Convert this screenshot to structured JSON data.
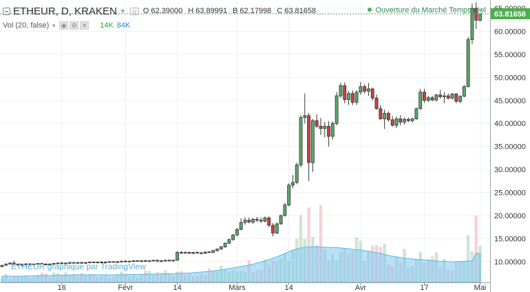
{
  "header": {
    "symbol": "ETHEUR, D, KRAKEN",
    "ohlc": [
      {
        "key": "O",
        "value": "62.39000"
      },
      {
        "key": "H",
        "value": "63.89991"
      },
      {
        "key": "B",
        "value": "62.17998"
      },
      {
        "key": "C",
        "value": "63.81658"
      }
    ],
    "volume_label": "Vol (20, false)",
    "volume_value": "14K",
    "volume_ma_value": "84K"
  },
  "status": {
    "text": "Ouverture du Marché  Temps réel"
  },
  "watermark": "ETHEUR graphique par TradingView",
  "price_badge": "63.81658",
  "chart_data": {
    "type": "candlestick",
    "title": "ETHEUR, D, KRAKEN",
    "x_labels": [
      "16",
      "Févr",
      "14",
      "Mars",
      "14",
      "Avr",
      "17",
      "Mai"
    ],
    "x_dates": [
      "2017-01-16",
      "2017-02-01",
      "2017-02-14",
      "2017-03-01",
      "2017-03-14",
      "2017-04-01",
      "2017-04-17",
      "2017-05-01"
    ],
    "x_range": [
      "2017-01-01",
      "2017-05-04"
    ],
    "y_ticks": [
      "10.00000",
      "15.00000",
      "20.00000",
      "25.00000",
      "30.00000",
      "35.00000",
      "40.00000",
      "45.00000",
      "50.00000",
      "55.00000",
      "60.00000",
      "65.00000"
    ],
    "y_range": [
      5.5,
      66.5
    ],
    "last_price": 63.81658,
    "grid": true,
    "candles": [
      [
        "2017-01-01",
        8.9,
        9.3,
        8.8,
        9.2
      ],
      [
        "2017-01-02",
        9.2,
        9.6,
        9.1,
        9.5
      ],
      [
        "2017-01-03",
        9.5,
        9.8,
        9.3,
        9.7
      ],
      [
        "2017-01-04",
        9.7,
        10.2,
        9.5,
        9.4
      ],
      [
        "2017-01-05",
        9.4,
        9.6,
        9.1,
        9.3
      ],
      [
        "2017-01-06",
        9.3,
        9.5,
        9.0,
        9.4
      ],
      [
        "2017-01-07",
        9.4,
        9.7,
        9.2,
        9.5
      ],
      [
        "2017-01-08",
        9.5,
        9.7,
        9.3,
        9.4
      ],
      [
        "2017-01-09",
        9.4,
        9.6,
        9.2,
        9.5
      ],
      [
        "2017-01-10",
        9.5,
        9.7,
        9.3,
        9.6
      ],
      [
        "2017-01-11",
        9.6,
        9.8,
        9.4,
        9.5
      ],
      [
        "2017-01-12",
        9.5,
        9.6,
        9.2,
        9.3
      ],
      [
        "2017-01-13",
        9.3,
        9.6,
        9.2,
        9.5
      ],
      [
        "2017-01-14",
        9.5,
        9.7,
        9.3,
        9.6
      ],
      [
        "2017-01-15",
        9.6,
        9.8,
        9.4,
        9.7
      ],
      [
        "2017-01-16",
        9.7,
        9.9,
        9.5,
        9.6
      ],
      [
        "2017-01-17",
        9.6,
        9.8,
        9.4,
        9.7
      ],
      [
        "2017-01-18",
        9.7,
        9.9,
        9.5,
        9.8
      ],
      [
        "2017-01-19",
        9.8,
        9.9,
        9.6,
        9.7
      ],
      [
        "2017-01-20",
        9.7,
        9.9,
        9.5,
        9.8
      ],
      [
        "2017-01-21",
        9.8,
        10.0,
        9.6,
        9.7
      ],
      [
        "2017-01-22",
        9.7,
        9.9,
        9.5,
        9.8
      ],
      [
        "2017-01-23",
        9.8,
        10.0,
        9.6,
        9.9
      ],
      [
        "2017-01-24",
        9.9,
        10.0,
        9.7,
        9.8
      ],
      [
        "2017-01-25",
        9.8,
        10.0,
        9.6,
        9.9
      ],
      [
        "2017-01-26",
        9.9,
        10.1,
        9.7,
        9.8
      ],
      [
        "2017-01-27",
        9.8,
        10.0,
        9.6,
        9.9
      ],
      [
        "2017-01-28",
        9.9,
        10.1,
        9.7,
        10.0
      ],
      [
        "2017-01-29",
        10.0,
        10.1,
        9.8,
        9.9
      ],
      [
        "2017-01-30",
        9.9,
        10.1,
        9.7,
        10.0
      ],
      [
        "2017-01-31",
        10.0,
        10.2,
        9.8,
        10.1
      ],
      [
        "2017-02-01",
        10.1,
        10.3,
        9.9,
        10.0
      ],
      [
        "2017-02-02",
        10.0,
        10.2,
        9.8,
        10.1
      ],
      [
        "2017-02-03",
        10.1,
        10.3,
        9.9,
        10.2
      ],
      [
        "2017-02-04",
        10.2,
        10.3,
        10.0,
        10.1
      ],
      [
        "2017-02-05",
        10.1,
        10.3,
        9.9,
        10.2
      ],
      [
        "2017-02-06",
        10.2,
        10.4,
        10.0,
        10.1
      ],
      [
        "2017-02-07",
        10.1,
        10.3,
        9.9,
        10.2
      ],
      [
        "2017-02-08",
        10.2,
        10.4,
        10.0,
        10.3
      ],
      [
        "2017-02-09",
        10.3,
        10.4,
        10.0,
        10.1
      ],
      [
        "2017-02-10",
        10.1,
        10.3,
        9.9,
        10.2
      ],
      [
        "2017-02-11",
        10.2,
        10.4,
        10.0,
        10.3
      ],
      [
        "2017-02-12",
        10.3,
        10.5,
        10.1,
        10.2
      ],
      [
        "2017-02-13",
        10.2,
        10.4,
        10.0,
        10.3
      ],
      [
        "2017-02-14",
        10.3,
        12.3,
        10.2,
        12.0
      ],
      [
        "2017-02-15",
        12.0,
        12.3,
        11.7,
        11.9
      ],
      [
        "2017-02-16",
        11.9,
        12.2,
        11.7,
        12.0
      ],
      [
        "2017-02-17",
        12.0,
        12.2,
        11.7,
        11.8
      ],
      [
        "2017-02-18",
        11.8,
        12.1,
        11.6,
        12.0
      ],
      [
        "2017-02-19",
        12.0,
        12.2,
        11.8,
        11.9
      ],
      [
        "2017-02-20",
        11.9,
        12.1,
        11.6,
        11.8
      ],
      [
        "2017-02-21",
        11.8,
        12.2,
        11.7,
        12.1
      ],
      [
        "2017-02-22",
        12.1,
        12.3,
        11.9,
        12.0
      ],
      [
        "2017-02-23",
        12.0,
        12.6,
        11.9,
        12.4
      ],
      [
        "2017-02-24",
        12.4,
        12.9,
        12.2,
        12.7
      ],
      [
        "2017-02-25",
        12.7,
        13.4,
        12.6,
        13.2
      ],
      [
        "2017-02-26",
        13.2,
        14.2,
        13.0,
        14.0
      ],
      [
        "2017-02-27",
        14.0,
        15.0,
        13.8,
        14.8
      ],
      [
        "2017-02-28",
        14.8,
        16.0,
        14.5,
        15.8
      ],
      [
        "2017-03-01",
        15.8,
        17.3,
        15.5,
        17.0
      ],
      [
        "2017-03-02",
        17.0,
        19.4,
        16.8,
        18.5
      ],
      [
        "2017-03-03",
        18.5,
        19.6,
        18.0,
        19.0
      ],
      [
        "2017-03-04",
        19.0,
        19.6,
        18.3,
        18.6
      ],
      [
        "2017-03-05",
        18.6,
        19.5,
        18.2,
        19.2
      ],
      [
        "2017-03-06",
        19.2,
        19.7,
        18.6,
        19.0
      ],
      [
        "2017-03-07",
        19.0,
        19.6,
        18.4,
        18.8
      ],
      [
        "2017-03-08",
        18.8,
        19.8,
        18.5,
        19.5
      ],
      [
        "2017-03-09",
        19.5,
        19.8,
        17.5,
        17.9
      ],
      [
        "2017-03-10",
        17.9,
        18.4,
        15.5,
        16.2
      ],
      [
        "2017-03-11",
        16.2,
        18.5,
        16.0,
        18.2
      ],
      [
        "2017-03-12",
        18.2,
        20.2,
        18.0,
        20.0
      ],
      [
        "2017-03-13",
        20.0,
        22.8,
        19.8,
        22.3
      ],
      [
        "2017-03-14",
        22.3,
        27.0,
        22.0,
        26.6
      ],
      [
        "2017-03-15",
        26.6,
        28.8,
        26.0,
        27.2
      ],
      [
        "2017-03-16",
        27.2,
        31.5,
        26.8,
        31.0
      ],
      [
        "2017-03-17",
        31.0,
        41.8,
        30.5,
        41.3
      ],
      [
        "2017-03-18",
        41.3,
        46.5,
        40.0,
        41.7
      ],
      [
        "2017-03-19",
        41.7,
        42.3,
        27.5,
        31.5
      ],
      [
        "2017-03-20",
        31.5,
        41.0,
        29.5,
        40.6
      ],
      [
        "2017-03-21",
        40.6,
        42.0,
        39.0,
        39.4
      ],
      [
        "2017-03-22",
        39.4,
        41.2,
        37.5,
        38.9
      ],
      [
        "2017-03-23",
        38.9,
        40.3,
        37.0,
        39.4
      ],
      [
        "2017-03-24",
        39.4,
        40.5,
        35.0,
        37.2
      ],
      [
        "2017-03-25",
        37.2,
        40.5,
        36.5,
        40.0
      ],
      [
        "2017-03-26",
        40.0,
        46.8,
        39.6,
        46.0
      ],
      [
        "2017-03-27",
        46.0,
        48.8,
        45.5,
        48.2
      ],
      [
        "2017-03-28",
        48.2,
        48.9,
        44.4,
        45.2
      ],
      [
        "2017-03-29",
        45.2,
        47.0,
        44.0,
        46.5
      ],
      [
        "2017-03-30",
        46.5,
        47.2,
        44.0,
        44.6
      ],
      [
        "2017-03-31",
        44.6,
        47.2,
        44.0,
        46.8
      ],
      [
        "2017-04-01",
        46.8,
        49.0,
        46.2,
        48.0
      ],
      [
        "2017-04-02",
        48.0,
        48.5,
        46.5,
        47.0
      ],
      [
        "2017-04-03",
        47.0,
        48.8,
        46.0,
        47.5
      ],
      [
        "2017-04-04",
        47.5,
        47.8,
        45.0,
        45.5
      ],
      [
        "2017-04-05",
        45.5,
        46.3,
        43.0,
        43.2
      ],
      [
        "2017-04-06",
        43.2,
        44.0,
        40.8,
        41.0
      ],
      [
        "2017-04-07",
        41.0,
        43.0,
        38.8,
        42.2
      ],
      [
        "2017-04-08",
        42.2,
        42.6,
        40.4,
        40.8
      ],
      [
        "2017-04-09",
        40.8,
        41.6,
        39.3,
        39.6
      ],
      [
        "2017-04-10",
        39.6,
        41.5,
        39.0,
        41.0
      ],
      [
        "2017-04-11",
        41.0,
        41.8,
        39.6,
        40.3
      ],
      [
        "2017-04-12",
        40.3,
        41.3,
        39.8,
        40.9
      ],
      [
        "2017-04-13",
        40.9,
        41.3,
        40.3,
        40.6
      ],
      [
        "2017-04-14",
        40.6,
        41.2,
        40.2,
        41.0
      ],
      [
        "2017-04-15",
        41.0,
        43.5,
        40.8,
        43.2
      ],
      [
        "2017-04-16",
        43.2,
        47.5,
        43.0,
        46.8
      ],
      [
        "2017-04-17",
        46.8,
        47.5,
        44.5,
        45.0
      ],
      [
        "2017-04-18",
        45.0,
        46.0,
        44.6,
        45.6
      ],
      [
        "2017-04-19",
        45.6,
        46.0,
        44.8,
        45.1
      ],
      [
        "2017-04-20",
        45.1,
        46.4,
        44.8,
        46.2
      ],
      [
        "2017-04-21",
        46.2,
        47.3,
        45.4,
        45.8
      ],
      [
        "2017-04-22",
        45.8,
        46.8,
        44.4,
        46.0
      ],
      [
        "2017-04-23",
        46.0,
        46.5,
        45.2,
        45.5
      ],
      [
        "2017-04-24",
        45.5,
        46.6,
        45.2,
        46.4
      ],
      [
        "2017-04-25",
        46.4,
        46.6,
        44.4,
        44.8
      ],
      [
        "2017-04-26",
        44.8,
        46.1,
        44.4,
        45.9
      ],
      [
        "2017-04-27",
        45.9,
        48.3,
        45.7,
        48.0
      ],
      [
        "2017-04-28",
        48.0,
        58.8,
        47.8,
        58.2
      ],
      [
        "2017-04-29",
        58.2,
        66.0,
        57.2,
        65.0
      ],
      [
        "2017-04-30",
        65.0,
        66.3,
        60.5,
        62.4
      ],
      [
        "2017-05-01",
        62.39,
        63.89991,
        62.17998,
        63.81658
      ]
    ],
    "volume_ma": [
      18,
      18,
      18,
      18,
      18,
      18,
      18,
      19,
      19,
      19,
      20,
      20,
      20,
      20,
      21,
      21,
      21,
      21,
      22,
      22,
      22,
      22,
      22,
      22,
      22,
      22,
      22,
      22,
      22,
      22,
      22,
      22,
      23,
      23,
      23,
      23,
      24,
      24,
      24,
      24,
      25,
      25,
      25,
      25,
      26,
      26,
      27,
      27,
      28,
      29,
      30,
      31,
      32,
      33,
      35,
      36,
      38,
      40,
      42,
      44,
      46,
      48,
      50,
      53,
      56,
      59,
      62,
      66,
      70,
      74,
      79,
      84,
      89,
      93,
      97,
      100,
      102,
      103,
      103,
      103,
      103,
      102,
      102,
      101,
      101,
      100,
      99,
      98,
      96,
      95,
      94,
      92,
      90,
      88,
      86,
      84,
      81,
      78,
      76,
      74,
      72,
      70,
      69,
      68,
      67,
      66,
      65,
      64,
      63,
      62,
      61,
      61,
      60,
      60,
      60,
      61,
      61,
      62,
      62,
      84,
      84
    ]
  }
}
